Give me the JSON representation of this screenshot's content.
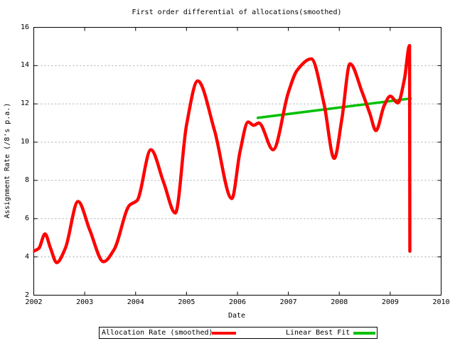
{
  "chart_data": {
    "type": "line",
    "title": "First order differential of allocations(smoothed)",
    "xlabel": "Date",
    "ylabel": "Assignment Rate (/8's p.a.)",
    "xlim": [
      2002,
      2010
    ],
    "ylim": [
      2,
      16
    ],
    "xticks": [
      2002,
      2003,
      2004,
      2005,
      2006,
      2007,
      2008,
      2009,
      2010
    ],
    "yticks": [
      2,
      4,
      6,
      8,
      10,
      12,
      14,
      16
    ],
    "grid": "horizontal-dashed-at-yticks",
    "legend_position": "below-plot-boxed",
    "background_color": "#ffffff",
    "axis_color": "#000000",
    "grid_color": "#a8a8a8",
    "series": [
      {
        "name": "Allocation Rate (smoothed)",
        "color": "#ff0000",
        "width": 4.5,
        "points": [
          [
            2002.0,
            4.3
          ],
          [
            2002.1,
            4.45
          ],
          [
            2002.22,
            5.2
          ],
          [
            2002.33,
            4.45
          ],
          [
            2002.45,
            3.7
          ],
          [
            2002.62,
            4.45
          ],
          [
            2002.87,
            6.9
          ],
          [
            2003.1,
            5.4
          ],
          [
            2003.37,
            3.75
          ],
          [
            2003.58,
            4.4
          ],
          [
            2003.88,
            6.7
          ],
          [
            2004.03,
            6.95
          ],
          [
            2004.3,
            9.6
          ],
          [
            2004.55,
            7.9
          ],
          [
            2004.78,
            6.3
          ],
          [
            2005.0,
            10.9
          ],
          [
            2005.22,
            13.2
          ],
          [
            2005.55,
            10.6
          ],
          [
            2005.89,
            7.05
          ],
          [
            2006.05,
            9.5
          ],
          [
            2006.21,
            11.05
          ],
          [
            2006.32,
            10.88
          ],
          [
            2006.42,
            11.0
          ],
          [
            2006.7,
            9.6
          ],
          [
            2007.0,
            12.6
          ],
          [
            2007.17,
            13.75
          ],
          [
            2007.45,
            14.35
          ],
          [
            2007.7,
            12.0
          ],
          [
            2007.9,
            9.15
          ],
          [
            2008.05,
            11.2
          ],
          [
            2008.21,
            14.1
          ],
          [
            2008.45,
            12.6
          ],
          [
            2008.6,
            11.5
          ],
          [
            2008.72,
            10.6
          ],
          [
            2008.88,
            11.9
          ],
          [
            2009.0,
            12.4
          ],
          [
            2009.15,
            12.05
          ],
          [
            2009.28,
            13.3
          ],
          [
            2009.38,
            15.05
          ],
          [
            2009.385,
            4.3
          ]
        ]
      },
      {
        "name": "Linear Best Fit",
        "color": "#00c000",
        "width": 3.5,
        "points": [
          [
            2006.4,
            11.27
          ],
          [
            2009.4,
            12.28
          ]
        ]
      }
    ]
  }
}
